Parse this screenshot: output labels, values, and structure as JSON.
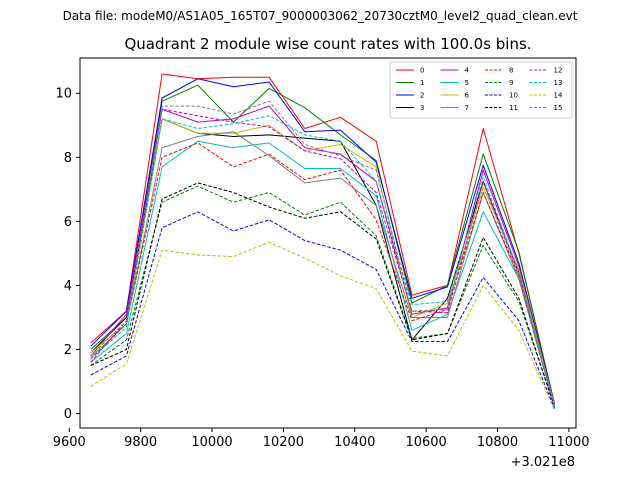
{
  "chart_data": {
    "type": "line",
    "suptitle": "Data file: modeM0/AS1A05_165T07_9000003062_20730cztM0_level2_quad_clean.evt",
    "title": "Quadrant 2 module wise count rates with 100.0s bins.",
    "xlabel": "",
    "ylabel": "",
    "x_offset_label": "+3.021e8",
    "xlim": [
      9630,
      11020
    ],
    "ylim": [
      -0.45,
      11.1
    ],
    "xticks": [
      9600,
      9800,
      10000,
      10200,
      10400,
      10600,
      10800,
      11000
    ],
    "xtick_labels": [
      "9600",
      "9800",
      "10000",
      "10200",
      "10400",
      "10600",
      "10800",
      "11000"
    ],
    "yticks": [
      0,
      2,
      4,
      6,
      8,
      10
    ],
    "ytick_labels": [
      "0",
      "2",
      "4",
      "6",
      "8",
      "10"
    ],
    "grid": false,
    "legend_position": "top-right",
    "x": [
      9660,
      9760,
      9860,
      9960,
      10060,
      10160,
      10260,
      10360,
      10460,
      10560,
      10660,
      10760,
      10860,
      10960
    ],
    "series": [
      {
        "name": "0",
        "color": "#ff0000",
        "dash": false,
        "values": [
          2.2,
          3.2,
          10.6,
          10.45,
          10.5,
          10.5,
          8.9,
          9.25,
          8.5,
          3.7,
          4.0,
          8.9,
          5.0,
          0.3
        ]
      },
      {
        "name": "1",
        "color": "#008000",
        "dash": false,
        "values": [
          2.0,
          3.0,
          9.75,
          10.25,
          9.1,
          10.15,
          9.55,
          8.7,
          7.9,
          3.45,
          4.0,
          8.1,
          5.05,
          0.25
        ]
      },
      {
        "name": "2",
        "color": "#0000ff",
        "dash": false,
        "values": [
          2.1,
          3.2,
          9.85,
          10.45,
          10.2,
          10.35,
          8.8,
          8.85,
          7.85,
          3.6,
          3.95,
          7.75,
          4.7,
          0.3
        ]
      },
      {
        "name": "3",
        "color": "#000000",
        "dash": false,
        "values": [
          1.9,
          3.0,
          9.2,
          8.75,
          8.65,
          8.7,
          8.6,
          8.5,
          6.5,
          2.3,
          3.6,
          7.25,
          4.4,
          0.25
        ]
      },
      {
        "name": "4",
        "color": "#c000c0",
        "dash": false,
        "values": [
          1.8,
          3.1,
          9.5,
          9.1,
          9.2,
          9.6,
          8.3,
          8.1,
          7.25,
          3.1,
          3.3,
          7.6,
          4.6,
          0.25
        ]
      },
      {
        "name": "5",
        "color": "#00bfbf",
        "dash": false,
        "values": [
          1.6,
          2.5,
          7.7,
          8.5,
          8.3,
          8.45,
          7.65,
          7.65,
          6.8,
          2.6,
          3.1,
          6.3,
          4.2,
          0.2
        ]
      },
      {
        "name": "6",
        "color": "#bfbf00",
        "dash": false,
        "values": [
          1.9,
          2.8,
          9.2,
          8.75,
          8.75,
          9.0,
          8.2,
          8.4,
          7.7,
          3.0,
          3.45,
          7.05,
          4.5,
          0.25
        ]
      },
      {
        "name": "7",
        "color": "#808080",
        "dash": false,
        "values": [
          1.75,
          2.8,
          8.3,
          8.65,
          8.8,
          8.05,
          7.2,
          7.35,
          6.5,
          3.0,
          3.0,
          6.9,
          4.2,
          0.2
        ]
      },
      {
        "name": "8",
        "color": "#ff0000",
        "dash": true,
        "values": [
          1.7,
          2.8,
          8.0,
          8.45,
          7.7,
          8.1,
          7.3,
          7.6,
          6.05,
          2.9,
          3.25,
          6.9,
          4.3,
          0.2
        ]
      },
      {
        "name": "9",
        "color": "#008000",
        "dash": true,
        "values": [
          1.5,
          2.3,
          6.6,
          7.1,
          6.6,
          6.9,
          6.2,
          6.6,
          5.55,
          2.35,
          2.5,
          5.25,
          3.5,
          0.2
        ]
      },
      {
        "name": "10",
        "color": "#0000ff",
        "dash": true,
        "values": [
          1.2,
          1.8,
          5.8,
          6.3,
          5.7,
          6.05,
          5.4,
          5.1,
          4.5,
          2.25,
          2.25,
          4.25,
          2.9,
          0.15
        ]
      },
      {
        "name": "11",
        "color": "#000000",
        "dash": true,
        "values": [
          1.5,
          2.0,
          6.7,
          7.2,
          6.9,
          6.45,
          6.1,
          6.3,
          5.45,
          2.3,
          2.5,
          5.5,
          3.6,
          0.2
        ]
      },
      {
        "name": "12",
        "color": "#c000c0",
        "dash": true,
        "values": [
          1.6,
          2.9,
          9.5,
          9.3,
          9.1,
          8.95,
          8.2,
          7.95,
          6.9,
          3.2,
          3.15,
          7.25,
          4.4,
          0.2
        ]
      },
      {
        "name": "13",
        "color": "#00bfbf",
        "dash": true,
        "values": [
          1.7,
          2.7,
          9.2,
          8.9,
          9.05,
          9.3,
          8.7,
          8.5,
          7.25,
          3.4,
          3.5,
          7.4,
          4.4,
          0.2
        ]
      },
      {
        "name": "14",
        "color": "#bfbf00",
        "dash": true,
        "values": [
          0.85,
          1.55,
          5.1,
          4.95,
          4.9,
          5.35,
          4.85,
          4.3,
          3.9,
          1.95,
          1.8,
          4.0,
          2.6,
          0.1
        ]
      },
      {
        "name": "15",
        "color": "#808080",
        "dash": true,
        "values": [
          1.8,
          2.9,
          9.6,
          9.6,
          9.35,
          9.75,
          8.4,
          8.05,
          7.6,
          3.2,
          3.25,
          7.2,
          4.3,
          0.25
        ]
      }
    ]
  }
}
